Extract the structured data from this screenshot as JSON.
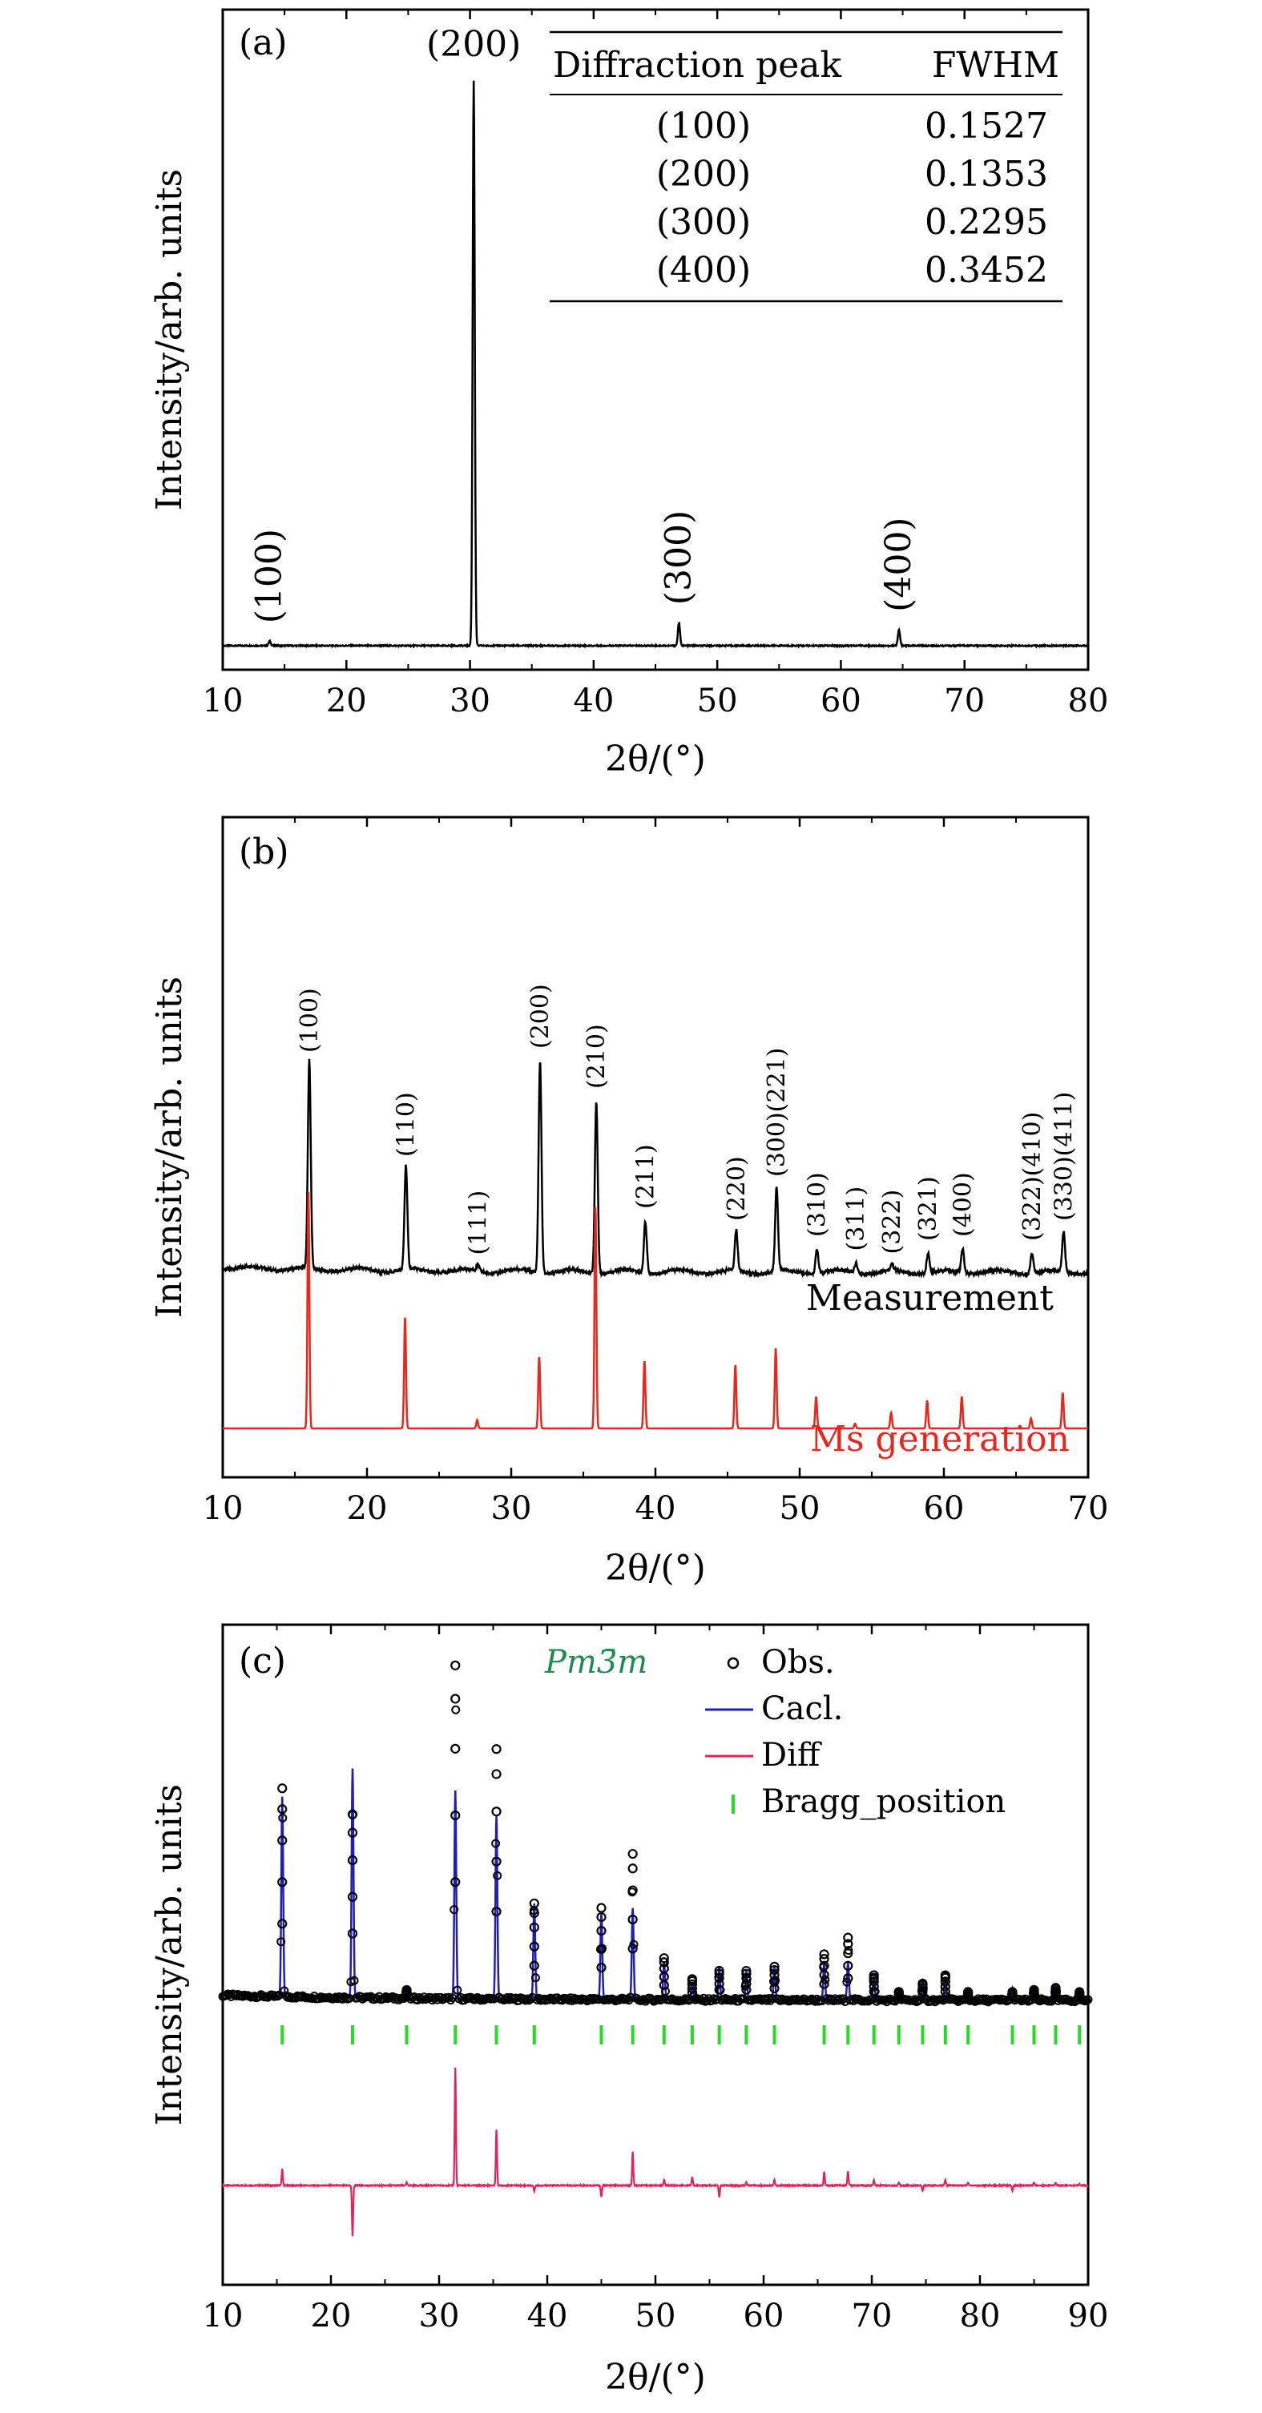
{
  "chart_data": [
    {
      "panel": "(a)",
      "type": "line",
      "xlabel": "2θ/(°)",
      "ylabel": "Intensity/arb. units",
      "xlim": [
        10,
        80
      ],
      "xticks": [
        10,
        20,
        30,
        40,
        50,
        60,
        70,
        80
      ],
      "baseline": 0.02,
      "peaks": [
        {
          "hkl": "(100)",
          "x": 13.8,
          "h": 0.008
        },
        {
          "hkl": "(200)",
          "x": 30.3,
          "h": 0.98
        },
        {
          "hkl": "(300)",
          "x": 46.9,
          "h": 0.04
        },
        {
          "hkl": "(400)",
          "x": 64.7,
          "h": 0.028
        }
      ],
      "table": {
        "headers": [
          "Diffraction peak",
          "FWHM"
        ],
        "rows": [
          [
            "(100)",
            "0.1527"
          ],
          [
            "(200)",
            "0.1353"
          ],
          [
            "(300)",
            "0.2295"
          ],
          [
            "(400)",
            "0.3452"
          ]
        ]
      }
    },
    {
      "panel": "(b)",
      "type": "line",
      "xlabel": "2θ/(°)",
      "ylabel": "Intensity/arb. units",
      "xlim": [
        10,
        70
      ],
      "xticks": [
        10,
        20,
        30,
        40,
        50,
        60,
        70
      ],
      "series": [
        {
          "name": "Measurement",
          "color": "#000000"
        },
        {
          "name": "Ms generation",
          "color": "#e8261c"
        }
      ],
      "peaks": [
        {
          "hkl": "(100)",
          "x": 16.0,
          "meas": 0.52,
          "sim": 0.59
        },
        {
          "hkl": "(110)",
          "x": 22.7,
          "meas": 0.26,
          "sim": 0.28
        },
        {
          "hkl": "(111)",
          "x": 27.7,
          "meas": 0.015,
          "sim": 0.021
        },
        {
          "hkl": "(200)",
          "x": 32.0,
          "meas": 0.53,
          "sim": 0.18
        },
        {
          "hkl": "(210)",
          "x": 35.9,
          "meas": 0.43,
          "sim": 0.56
        },
        {
          "hkl": "(211)",
          "x": 39.3,
          "meas": 0.13,
          "sim": 0.17
        },
        {
          "hkl": "(220)",
          "x": 45.6,
          "meas": 0.1,
          "sim": 0.16
        },
        {
          "hkl": "(300)(221)",
          "x": 48.4,
          "meas": 0.21,
          "sim": 0.2
        },
        {
          "hkl": "(310)",
          "x": 51.2,
          "meas": 0.06,
          "sim": 0.08
        },
        {
          "hkl": "(311)",
          "x": 53.9,
          "meas": 0.025,
          "sim": 0.012
        },
        {
          "hkl": "(322)",
          "x": 56.4,
          "meas": 0.017,
          "sim": 0.04
        },
        {
          "hkl": "(321)",
          "x": 58.9,
          "meas": 0.05,
          "sim": 0.07
        },
        {
          "hkl": "(400)",
          "x": 61.3,
          "meas": 0.06,
          "sim": 0.08
        },
        {
          "hkl": "(322)(410)",
          "x": 66.1,
          "meas": 0.05,
          "sim": 0.025
        },
        {
          "hkl": "(330)(411)",
          "x": 68.3,
          "meas": 0.1,
          "sim": 0.09
        }
      ]
    },
    {
      "panel": "(c)",
      "type": "scatter",
      "xlabel": "2θ/(°)",
      "ylabel": "Intensity/arb. units",
      "xlim": [
        10,
        90
      ],
      "xticks": [
        10,
        20,
        30,
        40,
        50,
        60,
        70,
        80,
        90
      ],
      "phase": "Pm3̄m",
      "legend": [
        {
          "label": "Obs.",
          "marker": "circle",
          "color": "#000000"
        },
        {
          "label": "Cacl.",
          "marker": "line",
          "color": "#1f1fb4"
        },
        {
          "label": "Diff",
          "marker": "line",
          "color": "#e0245c"
        },
        {
          "label": "Bragg_position",
          "marker": "bar",
          "color": "#22dd22"
        }
      ],
      "peaks": [
        {
          "x": 15.5,
          "obs": 0.5,
          "calc": 0.48,
          "diff": 0.06
        },
        {
          "x": 22.0,
          "obs": 0.44,
          "calc": 0.55,
          "diff": -0.18
        },
        {
          "x": 27.0,
          "obs": 0.02,
          "calc": 0.015,
          "diff": 0.01
        },
        {
          "x": 31.5,
          "obs": 0.8,
          "calc": 0.5,
          "diff": 0.42
        },
        {
          "x": 35.3,
          "obs": 0.6,
          "calc": 0.44,
          "diff": 0.2
        },
        {
          "x": 38.8,
          "obs": 0.23,
          "calc": 0.23,
          "diff": -0.02
        },
        {
          "x": 45.0,
          "obs": 0.22,
          "calc": 0.21,
          "diff": -0.04
        },
        {
          "x": 47.9,
          "obs": 0.35,
          "calc": 0.22,
          "diff": 0.12
        },
        {
          "x": 50.8,
          "obs": 0.1,
          "calc": 0.09,
          "diff": 0.02
        },
        {
          "x": 53.4,
          "obs": 0.05,
          "calc": 0.04,
          "diff": 0.03
        },
        {
          "x": 55.9,
          "obs": 0.07,
          "calc": 0.08,
          "diff": -0.04
        },
        {
          "x": 58.4,
          "obs": 0.07,
          "calc": 0.07,
          "diff": 0.01
        },
        {
          "x": 61.0,
          "obs": 0.08,
          "calc": 0.08,
          "diff": 0.02
        },
        {
          "x": 65.6,
          "obs": 0.11,
          "calc": 0.09,
          "diff": 0.05
        },
        {
          "x": 67.8,
          "obs": 0.15,
          "calc": 0.09,
          "diff": 0.05
        },
        {
          "x": 70.2,
          "obs": 0.06,
          "calc": 0.05,
          "diff": 0.02
        },
        {
          "x": 72.5,
          "obs": 0.02,
          "calc": 0.02,
          "diff": 0.01
        },
        {
          "x": 74.7,
          "obs": 0.04,
          "calc": 0.045,
          "diff": -0.02
        },
        {
          "x": 76.8,
          "obs": 0.06,
          "calc": 0.055,
          "diff": 0.02
        },
        {
          "x": 78.9,
          "obs": 0.02,
          "calc": 0.02,
          "diff": 0.01
        },
        {
          "x": 83.0,
          "obs": 0.02,
          "calc": 0.03,
          "diff": -0.02
        },
        {
          "x": 85.0,
          "obs": 0.025,
          "calc": 0.025,
          "diff": 0.01
        },
        {
          "x": 87.0,
          "obs": 0.03,
          "calc": 0.03,
          "diff": 0.01
        },
        {
          "x": 89.2,
          "obs": 0.02,
          "calc": 0.02,
          "diff": 0.005
        }
      ],
      "bragg": [
        15.5,
        22.0,
        27.0,
        31.5,
        35.3,
        38.8,
        45.0,
        47.9,
        50.8,
        53.4,
        55.9,
        58.4,
        61.0,
        65.6,
        67.8,
        70.2,
        72.5,
        74.7,
        76.8,
        78.9,
        83.0,
        85.0,
        87.0,
        89.2
      ]
    }
  ]
}
